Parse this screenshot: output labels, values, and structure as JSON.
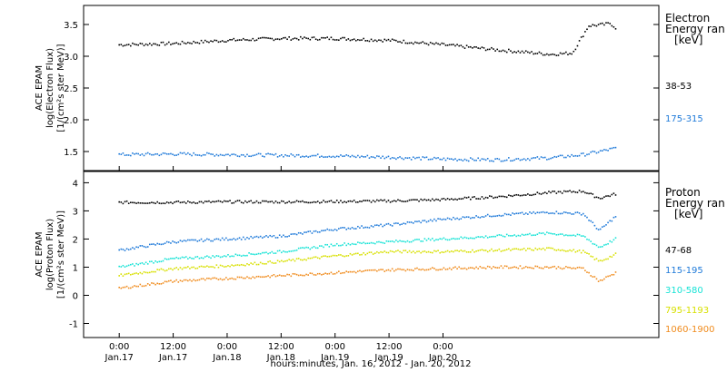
{
  "chart_data": [
    {
      "type": "scatter",
      "ylabel_lines": [
        "ACE EPAM",
        "log(Electron Flux)",
        "[1/(cm²s ster MeV)]"
      ],
      "ylim": [
        1.2,
        3.8
      ],
      "yticks": [
        "1.5",
        "2.0",
        "2.5",
        "3.0",
        "3.5"
      ],
      "legend_title": [
        "Electron",
        "Energy ran",
        "[keV]"
      ],
      "series": [
        {
          "name": "38-53",
          "color": "#000000",
          "x": [
            0,
            0.5,
            1.0,
            1.5,
            2.0,
            2.5,
            3.0,
            3.5,
            4.0,
            4.2,
            4.35,
            4.5,
            4.55,
            4.6
          ],
          "y": [
            3.18,
            3.2,
            3.25,
            3.28,
            3.28,
            3.25,
            3.18,
            3.1,
            3.03,
            3.05,
            3.48,
            3.5,
            3.52,
            3.45
          ]
        },
        {
          "name": "175-315",
          "color": "#1f7ad9",
          "x": [
            0,
            0.5,
            1.0,
            1.5,
            2.0,
            2.5,
            3.0,
            3.5,
            4.0,
            4.3,
            4.6
          ],
          "y": [
            1.45,
            1.46,
            1.45,
            1.44,
            1.43,
            1.41,
            1.38,
            1.37,
            1.4,
            1.45,
            1.55
          ]
        }
      ]
    },
    {
      "type": "scatter",
      "ylabel_lines": [
        "ACE EPAM",
        "log(Proton Flux)",
        "[1/(cm²s ster MeV)]"
      ],
      "ylim": [
        -1.5,
        4.4
      ],
      "yticks": [
        "-1",
        "0",
        "1",
        "2",
        "3",
        "4"
      ],
      "legend_title": [
        "Proton",
        "Energy ran",
        "[keV]"
      ],
      "series": [
        {
          "name": "47-68",
          "color": "#000000",
          "x": [
            0,
            0.5,
            1.0,
            1.5,
            2.0,
            2.5,
            3.0,
            3.5,
            4.0,
            4.3,
            4.45,
            4.6
          ],
          "y": [
            3.3,
            3.3,
            3.32,
            3.32,
            3.33,
            3.35,
            3.4,
            3.5,
            3.65,
            3.7,
            3.45,
            3.6
          ]
        },
        {
          "name": "115-195",
          "color": "#1f7ad9",
          "x": [
            0,
            0.5,
            1.0,
            1.5,
            2.0,
            2.5,
            3.0,
            3.5,
            4.0,
            4.3,
            4.45,
            4.6
          ],
          "y": [
            1.6,
            1.9,
            2.0,
            2.1,
            2.35,
            2.5,
            2.7,
            2.85,
            2.95,
            2.9,
            2.3,
            2.8
          ]
        },
        {
          "name": "310-580",
          "color": "#17e3d6",
          "x": [
            0,
            0.5,
            1.0,
            1.5,
            2.0,
            2.5,
            3.0,
            3.5,
            4.0,
            4.3,
            4.45,
            4.6
          ],
          "y": [
            1.0,
            1.3,
            1.4,
            1.55,
            1.8,
            1.9,
            2.0,
            2.1,
            2.2,
            2.1,
            1.7,
            2.0
          ]
        },
        {
          "name": "795-1193",
          "color": "#d8e000",
          "x": [
            0,
            0.5,
            1.0,
            1.5,
            2.0,
            2.5,
            3.0,
            3.5,
            4.0,
            4.3,
            4.45,
            4.6
          ],
          "y": [
            0.7,
            0.95,
            1.05,
            1.2,
            1.4,
            1.55,
            1.55,
            1.6,
            1.65,
            1.55,
            1.2,
            1.45
          ]
        },
        {
          "name": "1060-1900",
          "color": "#f08c1e",
          "x": [
            0,
            0.5,
            1.0,
            1.5,
            2.0,
            2.5,
            3.0,
            3.5,
            4.0,
            4.3,
            4.45,
            4.6
          ],
          "y": [
            0.25,
            0.5,
            0.6,
            0.7,
            0.8,
            0.9,
            0.95,
            1.0,
            1.0,
            0.95,
            0.5,
            0.8
          ]
        }
      ]
    }
  ],
  "xaxis": {
    "xlim": [
      -0.33,
      5.0
    ],
    "xlabel": "hours:minutes, Jan. 16, 2012 - Jan. 20, 2012",
    "ticks": [
      {
        "t": 0,
        "time": "0:00",
        "date": "Jan.17"
      },
      {
        "t": 0.5,
        "time": "12:00",
        "date": "Jan.17"
      },
      {
        "t": 1,
        "time": "0:00",
        "date": "Jan.18"
      },
      {
        "t": 1.5,
        "time": "12:00",
        "date": "Jan.18"
      },
      {
        "t": 2,
        "time": "0:00",
        "date": "Jan.19"
      },
      {
        "t": 2.5,
        "time": "12:00",
        "date": "Jan.19"
      },
      {
        "t": 3,
        "time": "0:00",
        "date": "Jan.20"
      }
    ]
  }
}
